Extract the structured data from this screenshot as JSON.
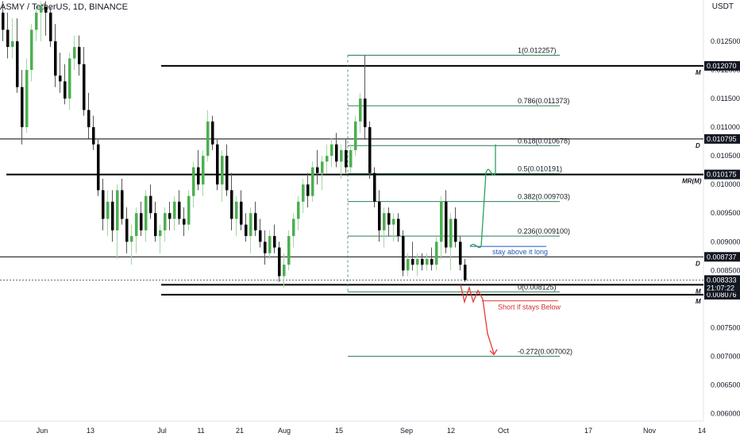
{
  "header": {
    "symbol": "ASMY / TetherUS, 1D, BINANCE",
    "currency": "USDT"
  },
  "colors": {
    "up": "#4caf50",
    "up_light": "#a5d6a7",
    "down": "#000000",
    "fib": "#2e7d55",
    "green_path": "#2aa15a",
    "red_path": "#e53935",
    "blue_line": "#1e5bb8"
  },
  "chart_data": {
    "type": "candlestick",
    "y_axis": {
      "min": 0.00587,
      "max": 0.01322,
      "ticks": [
        "0.012500",
        "0.012000",
        "0.011500",
        "0.011000",
        "0.010500",
        "0.010000",
        "0.009500",
        "0.009000",
        "0.008500",
        "0.007500",
        "0.007000",
        "0.006500",
        "0.006000"
      ],
      "tick_values": [
        0.0125,
        0.012,
        0.0115,
        0.011,
        0.0105,
        0.01,
        0.0095,
        0.009,
        0.0085,
        0.0075,
        0.007,
        0.0065,
        0.006
      ]
    },
    "x_axis": {
      "labels": [
        "Jun",
        "13",
        "Jul",
        "11",
        "21",
        "Aug",
        "15",
        "Sep",
        "12",
        "Oct",
        "17",
        "Nov",
        "14"
      ]
    },
    "candles": [
      [
        0.013,
        0.0132,
        0.0125,
        0.0127
      ],
      [
        0.0127,
        0.013,
        0.0122,
        0.0124
      ],
      [
        0.0124,
        0.0129,
        0.0122,
        0.0125
      ],
      [
        0.0125,
        0.0129,
        0.0116,
        0.0117
      ],
      [
        0.0117,
        0.012,
        0.0107,
        0.011
      ],
      [
        0.011,
        0.0122,
        0.0109,
        0.012
      ],
      [
        0.012,
        0.0128,
        0.0118,
        0.0127
      ],
      [
        0.0127,
        0.0131,
        0.0125,
        0.013
      ],
      [
        0.013,
        0.0132,
        0.0125,
        0.0131
      ],
      [
        0.0131,
        0.0132,
        0.0126,
        0.013
      ],
      [
        0.013,
        0.0131,
        0.0124,
        0.0125
      ],
      [
        0.0125,
        0.0128,
        0.0117,
        0.0119
      ],
      [
        0.0119,
        0.0123,
        0.0116,
        0.0118
      ],
      [
        0.0118,
        0.0121,
        0.0114,
        0.0115
      ],
      [
        0.0115,
        0.0123,
        0.0113,
        0.0122
      ],
      [
        0.0122,
        0.0126,
        0.012,
        0.0124
      ],
      [
        0.0124,
        0.0126,
        0.0119,
        0.0121
      ],
      [
        0.0121,
        0.0124,
        0.0112,
        0.0113
      ],
      [
        0.0113,
        0.0116,
        0.0108,
        0.011
      ],
      [
        0.011,
        0.0112,
        0.0106,
        0.0107
      ],
      [
        0.0107,
        0.0108,
        0.0098,
        0.0099
      ],
      [
        0.0099,
        0.0101,
        0.0092,
        0.0094
      ],
      [
        0.0094,
        0.0099,
        0.0091,
        0.0097
      ],
      [
        0.0097,
        0.0099,
        0.009,
        0.0092
      ],
      [
        0.0092,
        0.01,
        0.0087,
        0.0099
      ],
      [
        0.0099,
        0.0101,
        0.0093,
        0.0094
      ],
      [
        0.0094,
        0.0096,
        0.0088,
        0.009
      ],
      [
        0.009,
        0.0093,
        0.0086,
        0.0091
      ],
      [
        0.0091,
        0.0096,
        0.0088,
        0.0095
      ],
      [
        0.0095,
        0.0097,
        0.0091,
        0.0092
      ],
      [
        0.0092,
        0.0099,
        0.009,
        0.0098
      ],
      [
        0.0098,
        0.01,
        0.0094,
        0.0095
      ],
      [
        0.0095,
        0.0097,
        0.009,
        0.0091
      ],
      [
        0.0091,
        0.0093,
        0.0088,
        0.0092
      ],
      [
        0.0092,
        0.0096,
        0.009,
        0.0095
      ],
      [
        0.0095,
        0.0097,
        0.0092,
        0.0094
      ],
      [
        0.0094,
        0.0098,
        0.0092,
        0.0097
      ],
      [
        0.0097,
        0.0099,
        0.0093,
        0.0094
      ],
      [
        0.0094,
        0.0096,
        0.0091,
        0.0093
      ],
      [
        0.0093,
        0.0099,
        0.0092,
        0.0098
      ],
      [
        0.0098,
        0.0104,
        0.0096,
        0.0103
      ],
      [
        0.0103,
        0.0106,
        0.0099,
        0.01
      ],
      [
        0.01,
        0.0106,
        0.0098,
        0.0105
      ],
      [
        0.0105,
        0.0113,
        0.0104,
        0.0111
      ],
      [
        0.0111,
        0.0112,
        0.0106,
        0.0107
      ],
      [
        0.0107,
        0.0108,
        0.0099,
        0.01
      ],
      [
        0.01,
        0.0106,
        0.0097,
        0.0105
      ],
      [
        0.0105,
        0.0107,
        0.0098,
        0.0099
      ],
      [
        0.0099,
        0.0102,
        0.0092,
        0.0094
      ],
      [
        0.0094,
        0.0098,
        0.0091,
        0.0097
      ],
      [
        0.0097,
        0.0099,
        0.0092,
        0.0093
      ],
      [
        0.0093,
        0.0095,
        0.009,
        0.0091
      ],
      [
        0.0091,
        0.0096,
        0.0088,
        0.0095
      ],
      [
        0.0095,
        0.0097,
        0.0091,
        0.0092
      ],
      [
        0.0092,
        0.0094,
        0.0089,
        0.009
      ],
      [
        0.009,
        0.0092,
        0.0086,
        0.0088
      ],
      [
        0.0088,
        0.0092,
        0.0087,
        0.0091
      ],
      [
        0.0091,
        0.0093,
        0.0088,
        0.0089
      ],
      [
        0.0089,
        0.009,
        0.0083,
        0.0084
      ],
      [
        0.0084,
        0.0088,
        0.0082,
        0.0086
      ],
      [
        0.0086,
        0.0092,
        0.0085,
        0.0091
      ],
      [
        0.0091,
        0.0095,
        0.0089,
        0.0094
      ],
      [
        0.0094,
        0.0098,
        0.0092,
        0.0097
      ],
      [
        0.0097,
        0.0101,
        0.0095,
        0.01
      ],
      [
        0.01,
        0.0102,
        0.0096,
        0.0098
      ],
      [
        0.0098,
        0.0104,
        0.0097,
        0.0103
      ],
      [
        0.0103,
        0.0106,
        0.01,
        0.0102
      ],
      [
        0.0102,
        0.0105,
        0.0099,
        0.0104
      ],
      [
        0.0104,
        0.0107,
        0.0102,
        0.0105
      ],
      [
        0.0105,
        0.0108,
        0.0103,
        0.0107
      ],
      [
        0.0107,
        0.0109,
        0.0103,
        0.0104
      ],
      [
        0.0104,
        0.0107,
        0.0101,
        0.0106
      ],
      [
        0.0106,
        0.0108,
        0.0102,
        0.0103
      ],
      [
        0.0103,
        0.0107,
        0.0102,
        0.0106
      ],
      [
        0.0106,
        0.0112,
        0.0105,
        0.0111
      ],
      [
        0.0111,
        0.0116,
        0.0109,
        0.0115
      ],
      [
        0.0115,
        0.01225,
        0.0108,
        0.011
      ],
      [
        0.011,
        0.0111,
        0.0101,
        0.0102
      ],
      [
        0.0102,
        0.0103,
        0.0096,
        0.0097
      ],
      [
        0.0097,
        0.0099,
        0.009,
        0.0092
      ],
      [
        0.0092,
        0.0096,
        0.0089,
        0.0095
      ],
      [
        0.0095,
        0.0096,
        0.0091,
        0.0093
      ],
      [
        0.0093,
        0.0095,
        0.009,
        0.0094
      ],
      [
        0.0094,
        0.0095,
        0.009,
        0.0091
      ],
      [
        0.0091,
        0.0092,
        0.0084,
        0.0085
      ],
      [
        0.0085,
        0.0088,
        0.0084,
        0.0087
      ],
      [
        0.0087,
        0.009,
        0.0085,
        0.0086
      ],
      [
        0.0086,
        0.0088,
        0.0084,
        0.0087
      ],
      [
        0.0087,
        0.0088,
        0.0085,
        0.0086
      ],
      [
        0.0086,
        0.0088,
        0.0085,
        0.0087
      ],
      [
        0.0087,
        0.0089,
        0.0085,
        0.0086
      ],
      [
        0.0086,
        0.0091,
        0.0085,
        0.009
      ],
      [
        0.009,
        0.0098,
        0.0087,
        0.0097
      ],
      [
        0.0097,
        0.0099,
        0.0088,
        0.0089
      ],
      [
        0.0089,
        0.0095,
        0.0085,
        0.0094
      ],
      [
        0.0094,
        0.0096,
        0.0089,
        0.009
      ],
      [
        0.009,
        0.0091,
        0.0085,
        0.0086
      ],
      [
        0.0086,
        0.0087,
        0.0083,
        0.00833
      ]
    ],
    "fib_levels": [
      {
        "label": "1(0.012257)",
        "value": 0.012257
      },
      {
        "label": "0.786(0.011373)",
        "value": 0.011373
      },
      {
        "label": "0.618(0.010678)",
        "value": 0.010678
      },
      {
        "label": "0.5(0.010191)",
        "value": 0.010191
      },
      {
        "label": "0.382(0.009703)",
        "value": 0.009703
      },
      {
        "label": "0.236(0.009100)",
        "value": 0.0091
      },
      {
        "label": "0(0.008125)",
        "value": 0.008125
      },
      {
        "label": "-0.272(0.007002)",
        "value": 0.007002
      }
    ],
    "levels": [
      {
        "label": "M",
        "tag": "0.012070",
        "value": 0.01207,
        "weight": "heavy"
      },
      {
        "label": "D",
        "tag": "0.010795",
        "value": 0.010795,
        "weight": "light"
      },
      {
        "label": "MR(M)",
        "tag": "0.010175",
        "value": 0.010175,
        "weight": "heavy"
      },
      {
        "label": "D",
        "tag": "0.008737",
        "value": 0.008737,
        "weight": "light"
      },
      {
        "label": "M",
        "tag": "0.008250",
        "value": 0.00825,
        "weight": "heavy"
      },
      {
        "label": "M",
        "tag": "0.008076",
        "value": 0.008076,
        "weight": "heavy"
      }
    ],
    "current_price": {
      "value": 0.008333,
      "tag": "0.008333",
      "countdown": "21:07:22"
    },
    "annotations": {
      "long_note": "stay above it long",
      "short_note": "Short if stays Below",
      "long_level": 0.00892,
      "short_level": 0.00797
    }
  }
}
